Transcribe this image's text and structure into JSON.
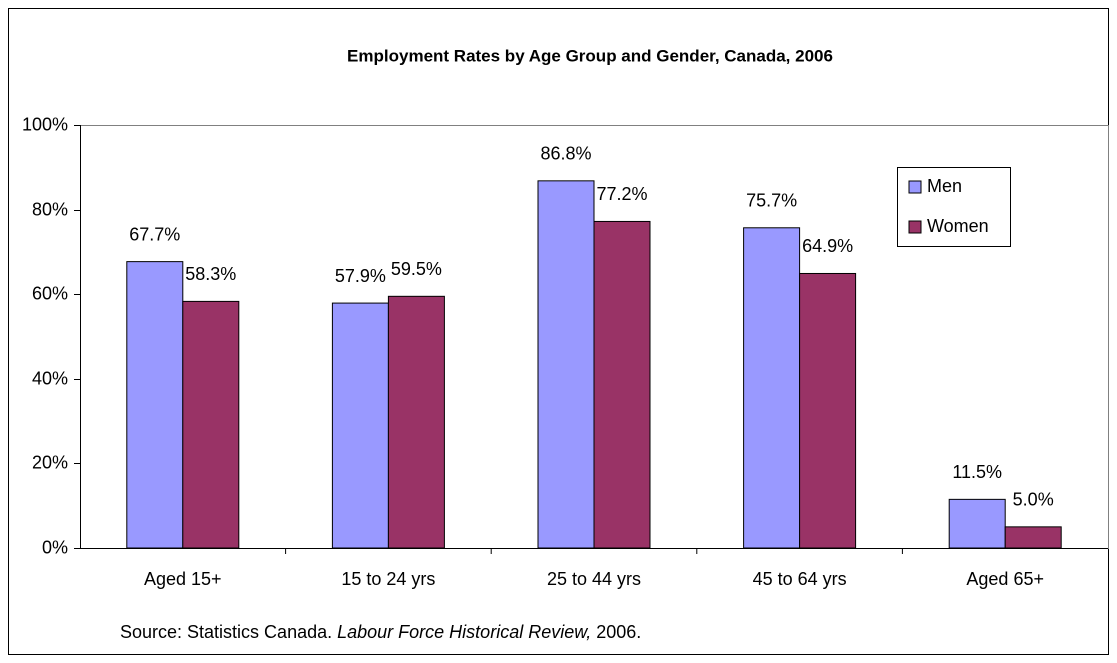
{
  "chart_data": {
    "type": "bar",
    "title": "Employment Rates by Age Group and Gender, Canada, 2006",
    "categories": [
      "Aged 15+",
      "15 to 24 yrs",
      "25 to 44 yrs",
      "45 to 64 yrs",
      "Aged 65+"
    ],
    "series": [
      {
        "name": "Men",
        "color": "#9999ff",
        "values": [
          67.7,
          57.9,
          86.8,
          75.7,
          11.5
        ],
        "value_labels": [
          "67.7%",
          "57.9%",
          "86.8%",
          "75.7%",
          "11.5%"
        ]
      },
      {
        "name": "Women",
        "color": "#993366",
        "values": [
          58.3,
          59.5,
          77.2,
          64.9,
          5.0
        ],
        "value_labels": [
          "58.3%",
          "59.5%",
          "77.2%",
          "64.9%",
          "5.0%"
        ]
      }
    ],
    "ylim": [
      0,
      100
    ],
    "yticks": [
      {
        "value": 0,
        "label": "0%"
      },
      {
        "value": 20,
        "label": "20%"
      },
      {
        "value": 40,
        "label": "40%"
      },
      {
        "value": 60,
        "label": "60%"
      },
      {
        "value": 80,
        "label": "80%"
      },
      {
        "value": 100,
        "label": "100%"
      }
    ],
    "grid": false,
    "legend": "right",
    "source": {
      "prefix": "Source: Statistics Canada.",
      "title": "Labour Force Historical Review,",
      "suffix": "2006."
    }
  }
}
